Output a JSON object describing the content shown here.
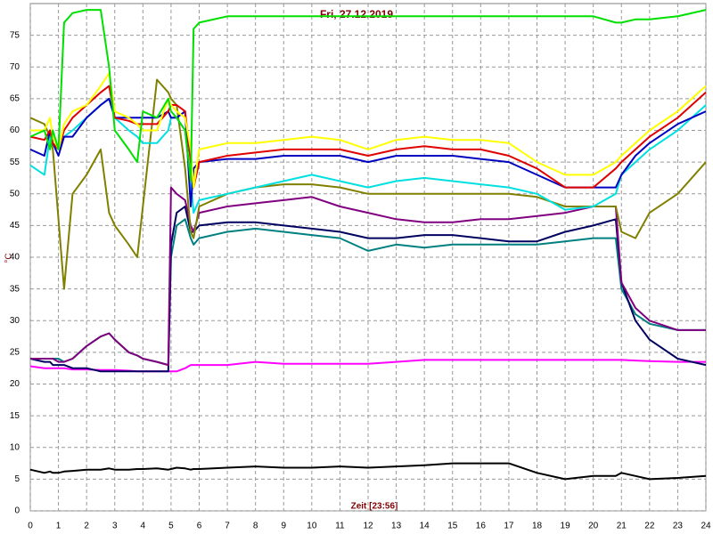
{
  "chart_data": {
    "type": "line",
    "title": "Fri, 27.12.2019",
    "xlabel": "Zeit [23:56]",
    "ylabel": "°C",
    "grid": true,
    "xlim": [
      0,
      24
    ],
    "xticks": [
      0,
      1,
      2,
      3,
      4,
      5,
      6,
      7,
      8,
      9,
      10,
      11,
      12,
      13,
      14,
      15,
      16,
      17,
      18,
      19,
      20,
      21,
      22,
      23,
      24
    ],
    "ylim": [
      0,
      80
    ],
    "yticks": [
      0,
      5,
      10,
      15,
      20,
      25,
      30,
      35,
      40,
      45,
      50,
      55,
      60,
      65,
      70,
      75
    ],
    "x": [
      0,
      0.5,
      0.7,
      0.8,
      1,
      1.2,
      1.5,
      2,
      2.5,
      2.8,
      3,
      3.5,
      3.8,
      4,
      4.5,
      4.9,
      5,
      5.2,
      5.5,
      5.7,
      5.8,
      6,
      7,
      8,
      9,
      10,
      11,
      12,
      13,
      14,
      15,
      16,
      17,
      18,
      19,
      20,
      20.8,
      21,
      21.5,
      22,
      23,
      24
    ],
    "series": [
      {
        "color": "#000000",
        "values": [
          6.5,
          6,
          6.2,
          6,
          6,
          6.2,
          6.3,
          6.5,
          6.5,
          6.7,
          6.5,
          6.5,
          6.6,
          6.6,
          6.7,
          6.5,
          6.6,
          6.8,
          6.7,
          6.5,
          6.6,
          6.6,
          6.8,
          7,
          6.8,
          6.8,
          7,
          6.8,
          7,
          7.2,
          7.5,
          7.5,
          7.5,
          6,
          5,
          5.5,
          5.5,
          6,
          5.5,
          5,
          5.2,
          5.5
        ]
      },
      {
        "color": "#ff00ff",
        "values": [
          22.8,
          22.5,
          22.5,
          22.5,
          22.5,
          22.5,
          22.3,
          22.3,
          22.2,
          22.2,
          22.2,
          22.1,
          22,
          22,
          22,
          22,
          22,
          22,
          22.5,
          23,
          23,
          23,
          23,
          23.5,
          23.2,
          23.2,
          23.2,
          23.2,
          23.5,
          23.8,
          23.8,
          23.8,
          23.8,
          23.8,
          23.8,
          23.8,
          23.8,
          23.8,
          23.7,
          23.6,
          23.5,
          23.5
        ]
      },
      {
        "color": "#008080",
        "values": [
          24,
          24,
          24,
          24,
          24,
          23.5,
          24,
          26,
          27.5,
          28,
          27,
          25,
          24.5,
          24,
          23.5,
          23,
          40,
          45,
          46,
          43,
          42,
          43,
          44,
          44.5,
          44,
          43.5,
          43,
          41,
          42,
          41.5,
          42,
          42,
          42,
          42,
          42.5,
          43,
          43,
          35,
          31,
          29.5,
          28.5,
          28.5
        ]
      },
      {
        "color": "#000060",
        "values": [
          24,
          23.5,
          23.5,
          23,
          23,
          23,
          22.5,
          22.5,
          22,
          22,
          22,
          22,
          22,
          22,
          22,
          22,
          42,
          47,
          48,
          44,
          44,
          45,
          45.5,
          45.5,
          45,
          44.5,
          44,
          43,
          43,
          43.5,
          43.5,
          43,
          42.5,
          42.5,
          44,
          45,
          46,
          36,
          30,
          27,
          24,
          23
        ]
      },
      {
        "color": "#800080",
        "values": [
          24,
          24,
          24,
          24,
          23.5,
          23.5,
          24,
          26,
          27.5,
          28,
          27,
          25,
          24.5,
          24,
          23.5,
          23,
          51,
          50,
          49,
          45,
          44,
          47,
          48,
          48.5,
          49,
          49.5,
          48,
          47,
          46,
          45.5,
          45.5,
          46,
          46,
          46.5,
          47,
          48,
          48,
          36,
          32,
          30,
          28.5,
          28.5
        ]
      },
      {
        "color": "#808000",
        "values": [
          62,
          61,
          59,
          57,
          46,
          35,
          50,
          53,
          57,
          47,
          45,
          42,
          40,
          48,
          68,
          66,
          65,
          64,
          54,
          44,
          43,
          48,
          50,
          51,
          51.5,
          51.5,
          51,
          50,
          50,
          50,
          50,
          50,
          50,
          49.5,
          48,
          48,
          48,
          44,
          43,
          47,
          50,
          55
        ]
      },
      {
        "color": "#00e0e0",
        "values": [
          54.5,
          53,
          59,
          58,
          57,
          59,
          60,
          62,
          64,
          65,
          62,
          60,
          59,
          58,
          58,
          60,
          62,
          62,
          60,
          52,
          47,
          49,
          50,
          51,
          52,
          53,
          52,
          51,
          52,
          52.5,
          52,
          51.5,
          51,
          50,
          47.5,
          48,
          50,
          53,
          55,
          57,
          60,
          64
        ]
      },
      {
        "color": "#0000c0",
        "values": [
          57,
          56,
          60,
          58,
          56,
          59,
          59,
          62,
          64,
          65,
          62,
          62,
          62,
          62,
          62,
          63,
          62,
          62,
          63,
          48,
          54,
          55,
          55.5,
          55.5,
          56,
          56,
          56,
          55,
          56,
          56,
          56,
          55.5,
          55,
          53,
          51,
          51,
          51,
          53,
          56,
          58,
          61,
          63
        ]
      },
      {
        "color": "#e00000",
        "values": [
          59,
          58.5,
          60,
          58,
          57,
          60,
          62,
          64,
          66,
          67,
          62,
          61.5,
          61,
          61,
          61,
          63,
          64,
          64,
          63,
          55,
          51,
          55,
          56,
          56.5,
          57,
          57,
          57,
          56,
          57,
          57.5,
          57,
          57,
          56,
          54,
          51,
          51,
          54,
          55,
          57,
          59,
          62,
          66
        ]
      },
      {
        "color": "#ffff00",
        "values": [
          60,
          60,
          62,
          59,
          57,
          61,
          63,
          64,
          67,
          69,
          63,
          62,
          61,
          60,
          60,
          65,
          64,
          63,
          62,
          57,
          51,
          57,
          58,
          58,
          58.5,
          59,
          58.5,
          57,
          58.5,
          59,
          58.5,
          58.5,
          58,
          55,
          53,
          53,
          55,
          56,
          58,
          60,
          63,
          67
        ]
      },
      {
        "color": "#00e000",
        "values": [
          59,
          60,
          57,
          60,
          57,
          77,
          78.5,
          79,
          79,
          70,
          60,
          57,
          55,
          63,
          62,
          65,
          63,
          62,
          60,
          52,
          76,
          77,
          78,
          78,
          78,
          78,
          78,
          78,
          78,
          78,
          78,
          78,
          78,
          78,
          78,
          78,
          77,
          77,
          77.5,
          77.5,
          78,
          79
        ]
      }
    ]
  }
}
